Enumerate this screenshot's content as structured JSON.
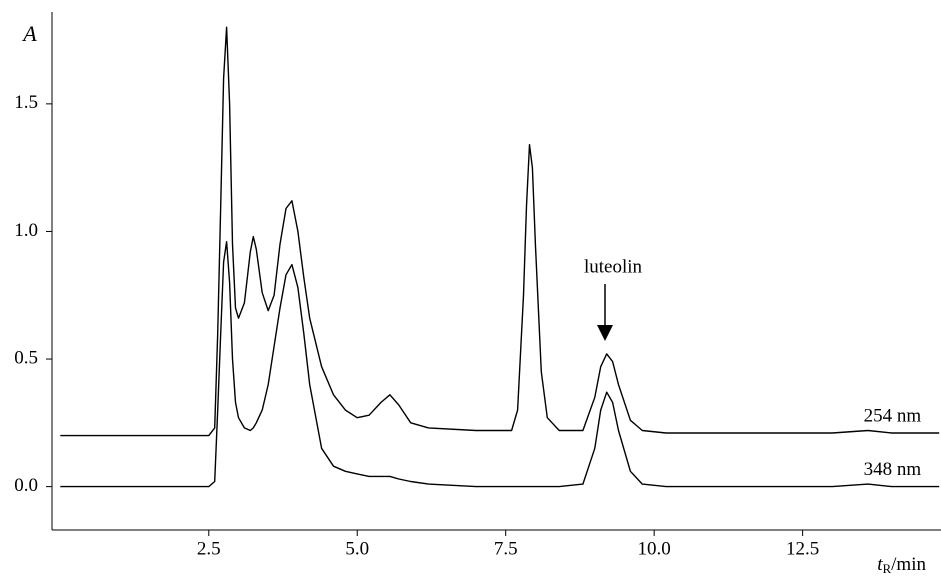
{
  "chart_data": {
    "type": "line",
    "y_label": "A",
    "x_label": [
      "t",
      "R",
      "/min"
    ],
    "annotation": "luteolin",
    "xlim": [
      -0.14,
      14.83
    ],
    "ylim": [
      -0.17,
      1.86
    ],
    "xticks": [
      2.5,
      {
        "value": 5.0,
        "label": "5.0"
      },
      7.5,
      {
        "value": 10.0,
        "label": "10.0"
      },
      12.5
    ],
    "yticks": [
      {
        "value": 0.0,
        "label": "0.0"
      },
      0.5,
      {
        "value": 1.0,
        "label": "1.0"
      },
      1.5
    ],
    "x": [
      0,
      1,
      2,
      2.5,
      2.6,
      2.65,
      2.7,
      2.75,
      2.8,
      2.85,
      2.9,
      2.95,
      3.0,
      3.1,
      3.2,
      3.25,
      3.3,
      3.4,
      3.5,
      3.6,
      3.7,
      3.8,
      3.9,
      4.0,
      4.1,
      4.2,
      4.4,
      4.6,
      4.8,
      5.0,
      5.2,
      5.4,
      5.55,
      5.7,
      5.9,
      6.2,
      7.0,
      7.6,
      7.7,
      7.8,
      7.85,
      7.9,
      7.95,
      8.0,
      8.1,
      8.2,
      8.4,
      8.8,
      9.0,
      9.1,
      9.2,
      9.3,
      9.4,
      9.6,
      9.8,
      10.2,
      11,
      12,
      13,
      13.6,
      14,
      14.8
    ],
    "series": [
      {
        "name": "254 nm",
        "color": "#000000",
        "values": [
          0.2,
          0.2,
          0.2,
          0.2,
          0.23,
          0.6,
          1.1,
          1.6,
          1.8,
          1.5,
          0.95,
          0.7,
          0.66,
          0.72,
          0.92,
          0.98,
          0.93,
          0.76,
          0.69,
          0.75,
          0.95,
          1.09,
          1.12,
          1.0,
          0.82,
          0.66,
          0.47,
          0.36,
          0.3,
          0.27,
          0.28,
          0.33,
          0.36,
          0.32,
          0.25,
          0.23,
          0.22,
          0.22,
          0.3,
          0.75,
          1.1,
          1.34,
          1.25,
          0.95,
          0.45,
          0.27,
          0.22,
          0.22,
          0.35,
          0.47,
          0.52,
          0.49,
          0.4,
          0.26,
          0.22,
          0.21,
          0.21,
          0.21,
          0.21,
          0.22,
          0.21,
          0.21
        ]
      },
      {
        "name": "348 nm",
        "color": "#000000",
        "values": [
          0,
          0,
          0,
          0,
          0.02,
          0.3,
          0.6,
          0.88,
          0.96,
          0.8,
          0.5,
          0.33,
          0.27,
          0.23,
          0.22,
          0.23,
          0.25,
          0.3,
          0.4,
          0.55,
          0.7,
          0.83,
          0.87,
          0.78,
          0.6,
          0.4,
          0.15,
          0.08,
          0.06,
          0.05,
          0.04,
          0.04,
          0.04,
          0.03,
          0.02,
          0.01,
          0,
          0,
          0,
          0,
          0,
          0,
          0,
          0,
          0,
          0,
          0,
          0.01,
          0.15,
          0.3,
          0.37,
          0.33,
          0.22,
          0.06,
          0.01,
          0,
          0,
          0,
          0,
          0.01,
          0,
          0
        ]
      }
    ]
  }
}
